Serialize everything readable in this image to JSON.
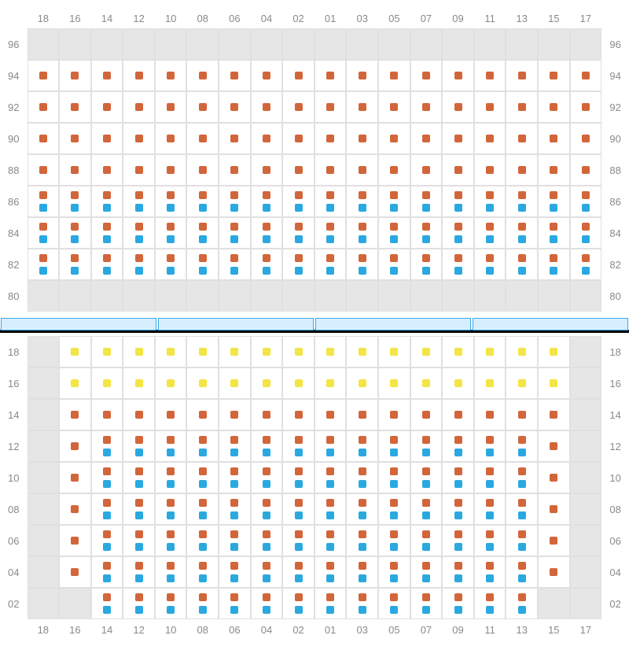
{
  "colors": {
    "orange": "#d2663a",
    "blue": "#2aa9e0",
    "yellow": "#f3e543",
    "empty_bg": "#e6e6e6",
    "cell_border": "#e0e0e0",
    "label": "#888a8c",
    "divider_fill": "#d6efff",
    "divider_border": "#3aa9e8",
    "divider_bar": "#000000"
  },
  "layout": {
    "col_count": 18,
    "col_labels": [
      "18",
      "16",
      "14",
      "12",
      "10",
      "08",
      "06",
      "04",
      "02",
      "01",
      "03",
      "05",
      "07",
      "09",
      "11",
      "13",
      "15",
      "17"
    ],
    "divider_segments": 4
  },
  "panel_upper": {
    "row_labels": [
      "96",
      "94",
      "92",
      "90",
      "88",
      "86",
      "84",
      "82",
      "80"
    ],
    "rows": [
      [
        {
          "e": 1
        },
        {
          "e": 1
        },
        {
          "e": 1
        },
        {
          "e": 1
        },
        {
          "e": 1
        },
        {
          "e": 1
        },
        {
          "e": 1
        },
        {
          "e": 1
        },
        {
          "e": 1
        },
        {
          "e": 1
        },
        {
          "e": 1
        },
        {
          "e": 1
        },
        {
          "e": 1
        },
        {
          "e": 1
        },
        {
          "e": 1
        },
        {
          "e": 1
        },
        {
          "e": 1
        },
        {
          "e": 1
        }
      ],
      [
        {
          "c": "o"
        },
        {
          "c": "o"
        },
        {
          "c": "o"
        },
        {
          "c": "o"
        },
        {
          "c": "o"
        },
        {
          "c": "o"
        },
        {
          "c": "o"
        },
        {
          "c": "o"
        },
        {
          "c": "o"
        },
        {
          "c": "o"
        },
        {
          "c": "o"
        },
        {
          "c": "o"
        },
        {
          "c": "o"
        },
        {
          "c": "o"
        },
        {
          "c": "o"
        },
        {
          "c": "o"
        },
        {
          "c": "o"
        },
        {
          "c": "o"
        }
      ],
      [
        {
          "c": "o"
        },
        {
          "c": "o"
        },
        {
          "c": "o"
        },
        {
          "c": "o"
        },
        {
          "c": "o"
        },
        {
          "c": "o"
        },
        {
          "c": "o"
        },
        {
          "c": "o"
        },
        {
          "c": "o"
        },
        {
          "c": "o"
        },
        {
          "c": "o"
        },
        {
          "c": "o"
        },
        {
          "c": "o"
        },
        {
          "c": "o"
        },
        {
          "c": "o"
        },
        {
          "c": "o"
        },
        {
          "c": "o"
        },
        {
          "c": "o"
        }
      ],
      [
        {
          "c": "o"
        },
        {
          "c": "o"
        },
        {
          "c": "o"
        },
        {
          "c": "o"
        },
        {
          "c": "o"
        },
        {
          "c": "o"
        },
        {
          "c": "o"
        },
        {
          "c": "o"
        },
        {
          "c": "o"
        },
        {
          "c": "o"
        },
        {
          "c": "o"
        },
        {
          "c": "o"
        },
        {
          "c": "o"
        },
        {
          "c": "o"
        },
        {
          "c": "o"
        },
        {
          "c": "o"
        },
        {
          "c": "o"
        },
        {
          "c": "o"
        }
      ],
      [
        {
          "c": "o"
        },
        {
          "c": "o"
        },
        {
          "c": "o"
        },
        {
          "c": "o"
        },
        {
          "c": "o"
        },
        {
          "c": "o"
        },
        {
          "c": "o"
        },
        {
          "c": "o"
        },
        {
          "c": "o"
        },
        {
          "c": "o"
        },
        {
          "c": "o"
        },
        {
          "c": "o"
        },
        {
          "c": "o"
        },
        {
          "c": "o"
        },
        {
          "c": "o"
        },
        {
          "c": "o"
        },
        {
          "c": "o"
        },
        {
          "c": "o"
        }
      ],
      [
        {
          "t": "o",
          "b": "b"
        },
        {
          "t": "o",
          "b": "b"
        },
        {
          "t": "o",
          "b": "b"
        },
        {
          "t": "o",
          "b": "b"
        },
        {
          "t": "o",
          "b": "b"
        },
        {
          "t": "o",
          "b": "b"
        },
        {
          "t": "o",
          "b": "b"
        },
        {
          "t": "o",
          "b": "b"
        },
        {
          "t": "o",
          "b": "b"
        },
        {
          "t": "o",
          "b": "b"
        },
        {
          "t": "o",
          "b": "b"
        },
        {
          "t": "o",
          "b": "b"
        },
        {
          "t": "o",
          "b": "b"
        },
        {
          "t": "o",
          "b": "b"
        },
        {
          "t": "o",
          "b": "b"
        },
        {
          "t": "o",
          "b": "b"
        },
        {
          "t": "o",
          "b": "b"
        },
        {
          "t": "o",
          "b": "b"
        }
      ],
      [
        {
          "t": "o",
          "b": "b"
        },
        {
          "t": "o",
          "b": "b"
        },
        {
          "t": "o",
          "b": "b"
        },
        {
          "t": "o",
          "b": "b"
        },
        {
          "t": "o",
          "b": "b"
        },
        {
          "t": "o",
          "b": "b"
        },
        {
          "t": "o",
          "b": "b"
        },
        {
          "t": "o",
          "b": "b"
        },
        {
          "t": "o",
          "b": "b"
        },
        {
          "t": "o",
          "b": "b"
        },
        {
          "t": "o",
          "b": "b"
        },
        {
          "t": "o",
          "b": "b"
        },
        {
          "t": "o",
          "b": "b"
        },
        {
          "t": "o",
          "b": "b"
        },
        {
          "t": "o",
          "b": "b"
        },
        {
          "t": "o",
          "b": "b"
        },
        {
          "t": "o",
          "b": "b"
        },
        {
          "t": "o",
          "b": "b"
        }
      ],
      [
        {
          "t": "o",
          "b": "b"
        },
        {
          "t": "o",
          "b": "b"
        },
        {
          "t": "o",
          "b": "b"
        },
        {
          "t": "o",
          "b": "b"
        },
        {
          "t": "o",
          "b": "b"
        },
        {
          "t": "o",
          "b": "b"
        },
        {
          "t": "o",
          "b": "b"
        },
        {
          "t": "o",
          "b": "b"
        },
        {
          "t": "o",
          "b": "b"
        },
        {
          "t": "o",
          "b": "b"
        },
        {
          "t": "o",
          "b": "b"
        },
        {
          "t": "o",
          "b": "b"
        },
        {
          "t": "o",
          "b": "b"
        },
        {
          "t": "o",
          "b": "b"
        },
        {
          "t": "o",
          "b": "b"
        },
        {
          "t": "o",
          "b": "b"
        },
        {
          "t": "o",
          "b": "b"
        },
        {
          "t": "o",
          "b": "b"
        }
      ],
      [
        {
          "e": 1
        },
        {
          "e": 1
        },
        {
          "e": 1
        },
        {
          "e": 1
        },
        {
          "e": 1
        },
        {
          "e": 1
        },
        {
          "e": 1
        },
        {
          "e": 1
        },
        {
          "e": 1
        },
        {
          "e": 1
        },
        {
          "e": 1
        },
        {
          "e": 1
        },
        {
          "e": 1
        },
        {
          "e": 1
        },
        {
          "e": 1
        },
        {
          "e": 1
        },
        {
          "e": 1
        },
        {
          "e": 1
        }
      ]
    ]
  },
  "panel_lower": {
    "row_labels": [
      "18",
      "16",
      "14",
      "12",
      "10",
      "08",
      "06",
      "04",
      "02"
    ],
    "rows": [
      [
        {
          "e": 1
        },
        {
          "c": "y"
        },
        {
          "c": "y"
        },
        {
          "c": "y"
        },
        {
          "c": "y"
        },
        {
          "c": "y"
        },
        {
          "c": "y"
        },
        {
          "c": "y"
        },
        {
          "c": "y"
        },
        {
          "c": "y"
        },
        {
          "c": "y"
        },
        {
          "c": "y"
        },
        {
          "c": "y"
        },
        {
          "c": "y"
        },
        {
          "c": "y"
        },
        {
          "c": "y"
        },
        {
          "c": "y"
        },
        {
          "e": 1
        }
      ],
      [
        {
          "e": 1
        },
        {
          "c": "y"
        },
        {
          "c": "y"
        },
        {
          "c": "y"
        },
        {
          "c": "y"
        },
        {
          "c": "y"
        },
        {
          "c": "y"
        },
        {
          "c": "y"
        },
        {
          "c": "y"
        },
        {
          "c": "y"
        },
        {
          "c": "y"
        },
        {
          "c": "y"
        },
        {
          "c": "y"
        },
        {
          "c": "y"
        },
        {
          "c": "y"
        },
        {
          "c": "y"
        },
        {
          "c": "y"
        },
        {
          "e": 1
        }
      ],
      [
        {
          "e": 1
        },
        {
          "c": "o"
        },
        {
          "c": "o"
        },
        {
          "c": "o"
        },
        {
          "c": "o"
        },
        {
          "c": "o"
        },
        {
          "c": "o"
        },
        {
          "c": "o"
        },
        {
          "c": "o"
        },
        {
          "c": "o"
        },
        {
          "c": "o"
        },
        {
          "c": "o"
        },
        {
          "c": "o"
        },
        {
          "c": "o"
        },
        {
          "c": "o"
        },
        {
          "c": "o"
        },
        {
          "c": "o"
        },
        {
          "e": 1
        }
      ],
      [
        {
          "e": 1
        },
        {
          "c": "o"
        },
        {
          "t": "o",
          "b": "b"
        },
        {
          "t": "o",
          "b": "b"
        },
        {
          "t": "o",
          "b": "b"
        },
        {
          "t": "o",
          "b": "b"
        },
        {
          "t": "o",
          "b": "b"
        },
        {
          "t": "o",
          "b": "b"
        },
        {
          "t": "o",
          "b": "b"
        },
        {
          "t": "o",
          "b": "b"
        },
        {
          "t": "o",
          "b": "b"
        },
        {
          "t": "o",
          "b": "b"
        },
        {
          "t": "o",
          "b": "b"
        },
        {
          "t": "o",
          "b": "b"
        },
        {
          "t": "o",
          "b": "b"
        },
        {
          "t": "o",
          "b": "b"
        },
        {
          "c": "o"
        },
        {
          "e": 1
        }
      ],
      [
        {
          "e": 1
        },
        {
          "c": "o"
        },
        {
          "t": "o",
          "b": "b"
        },
        {
          "t": "o",
          "b": "b"
        },
        {
          "t": "o",
          "b": "b"
        },
        {
          "t": "o",
          "b": "b"
        },
        {
          "t": "o",
          "b": "b"
        },
        {
          "t": "o",
          "b": "b"
        },
        {
          "t": "o",
          "b": "b"
        },
        {
          "t": "o",
          "b": "b"
        },
        {
          "t": "o",
          "b": "b"
        },
        {
          "t": "o",
          "b": "b"
        },
        {
          "t": "o",
          "b": "b"
        },
        {
          "t": "o",
          "b": "b"
        },
        {
          "t": "o",
          "b": "b"
        },
        {
          "t": "o",
          "b": "b"
        },
        {
          "c": "o"
        },
        {
          "e": 1
        }
      ],
      [
        {
          "e": 1
        },
        {
          "c": "o"
        },
        {
          "t": "o",
          "b": "b"
        },
        {
          "t": "o",
          "b": "b"
        },
        {
          "t": "o",
          "b": "b"
        },
        {
          "t": "o",
          "b": "b"
        },
        {
          "t": "o",
          "b": "b"
        },
        {
          "t": "o",
          "b": "b"
        },
        {
          "t": "o",
          "b": "b"
        },
        {
          "t": "o",
          "b": "b"
        },
        {
          "t": "o",
          "b": "b"
        },
        {
          "t": "o",
          "b": "b"
        },
        {
          "t": "o",
          "b": "b"
        },
        {
          "t": "o",
          "b": "b"
        },
        {
          "t": "o",
          "b": "b"
        },
        {
          "t": "o",
          "b": "b"
        },
        {
          "c": "o"
        },
        {
          "e": 1
        }
      ],
      [
        {
          "e": 1
        },
        {
          "c": "o"
        },
        {
          "t": "o",
          "b": "b"
        },
        {
          "t": "o",
          "b": "b"
        },
        {
          "t": "o",
          "b": "b"
        },
        {
          "t": "o",
          "b": "b"
        },
        {
          "t": "o",
          "b": "b"
        },
        {
          "t": "o",
          "b": "b"
        },
        {
          "t": "o",
          "b": "b"
        },
        {
          "t": "o",
          "b": "b"
        },
        {
          "t": "o",
          "b": "b"
        },
        {
          "t": "o",
          "b": "b"
        },
        {
          "t": "o",
          "b": "b"
        },
        {
          "t": "o",
          "b": "b"
        },
        {
          "t": "o",
          "b": "b"
        },
        {
          "t": "o",
          "b": "b"
        },
        {
          "c": "o"
        },
        {
          "e": 1
        }
      ],
      [
        {
          "e": 1
        },
        {
          "c": "o"
        },
        {
          "t": "o",
          "b": "b"
        },
        {
          "t": "o",
          "b": "b"
        },
        {
          "t": "o",
          "b": "b"
        },
        {
          "t": "o",
          "b": "b"
        },
        {
          "t": "o",
          "b": "b"
        },
        {
          "t": "o",
          "b": "b"
        },
        {
          "t": "o",
          "b": "b"
        },
        {
          "t": "o",
          "b": "b"
        },
        {
          "t": "o",
          "b": "b"
        },
        {
          "t": "o",
          "b": "b"
        },
        {
          "t": "o",
          "b": "b"
        },
        {
          "t": "o",
          "b": "b"
        },
        {
          "t": "o",
          "b": "b"
        },
        {
          "t": "o",
          "b": "b"
        },
        {
          "c": "o"
        },
        {
          "e": 1
        }
      ],
      [
        {
          "e": 1
        },
        {
          "e": 1
        },
        {
          "t": "o",
          "b": "b"
        },
        {
          "t": "o",
          "b": "b"
        },
        {
          "t": "o",
          "b": "b"
        },
        {
          "t": "o",
          "b": "b"
        },
        {
          "t": "o",
          "b": "b"
        },
        {
          "t": "o",
          "b": "b"
        },
        {
          "t": "o",
          "b": "b"
        },
        {
          "t": "o",
          "b": "b"
        },
        {
          "t": "o",
          "b": "b"
        },
        {
          "t": "o",
          "b": "b"
        },
        {
          "t": "o",
          "b": "b"
        },
        {
          "t": "o",
          "b": "b"
        },
        {
          "t": "o",
          "b": "b"
        },
        {
          "t": "o",
          "b": "b"
        },
        {
          "e": 1
        },
        {
          "e": 1
        }
      ]
    ]
  }
}
